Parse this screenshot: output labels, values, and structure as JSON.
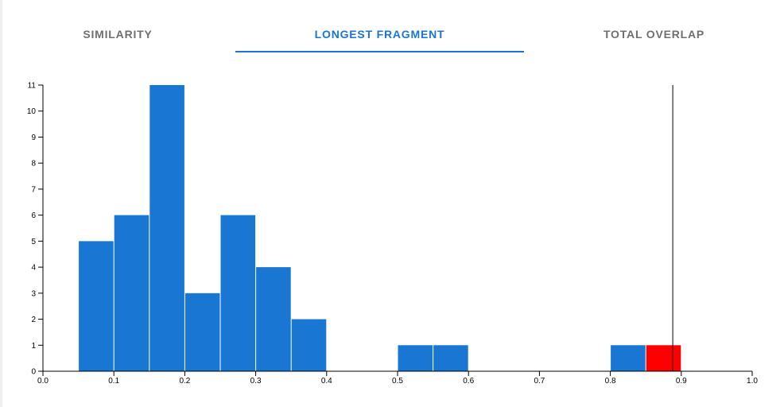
{
  "tabs": [
    {
      "label": "SIMILARITY",
      "active": false
    },
    {
      "label": "LONGEST FRAGMENT",
      "active": true
    },
    {
      "label": "TOTAL OVERLAP",
      "active": false
    }
  ],
  "colors": {
    "accent": "#1976d2",
    "bar": "#1976d2",
    "highlight": "#ff0000",
    "tab_inactive": "#6f6f6f"
  },
  "chart_data": {
    "type": "bar",
    "title": "",
    "xlabel": "",
    "ylabel": "",
    "xlim": [
      0.0,
      1.0
    ],
    "ylim": [
      0,
      11
    ],
    "x_ticks": [
      "0.0",
      "0.1",
      "0.2",
      "0.3",
      "0.4",
      "0.5",
      "0.6",
      "0.7",
      "0.8",
      "0.9",
      "1.0"
    ],
    "y_ticks": [
      "0",
      "1",
      "2",
      "3",
      "4",
      "5",
      "6",
      "7",
      "8",
      "9",
      "10",
      "11"
    ],
    "bin_width": 0.05,
    "bins": [
      {
        "x0": 0.05,
        "x1": 0.1,
        "count": 5,
        "highlight": false
      },
      {
        "x0": 0.1,
        "x1": 0.15,
        "count": 6,
        "highlight": false
      },
      {
        "x0": 0.15,
        "x1": 0.2,
        "count": 11,
        "highlight": false
      },
      {
        "x0": 0.2,
        "x1": 0.25,
        "count": 3,
        "highlight": false
      },
      {
        "x0": 0.25,
        "x1": 0.3,
        "count": 6,
        "highlight": false
      },
      {
        "x0": 0.3,
        "x1": 0.35,
        "count": 4,
        "highlight": false
      },
      {
        "x0": 0.35,
        "x1": 0.4,
        "count": 2,
        "highlight": false
      },
      {
        "x0": 0.5,
        "x1": 0.55,
        "count": 1,
        "highlight": false
      },
      {
        "x0": 0.55,
        "x1": 0.6,
        "count": 1,
        "highlight": false
      },
      {
        "x0": 0.8,
        "x1": 0.85,
        "count": 1,
        "highlight": false
      },
      {
        "x0": 0.85,
        "x1": 0.9,
        "count": 1,
        "highlight": true
      }
    ],
    "marker_line": {
      "x": 0.888
    },
    "grid": false,
    "legend": "none"
  }
}
